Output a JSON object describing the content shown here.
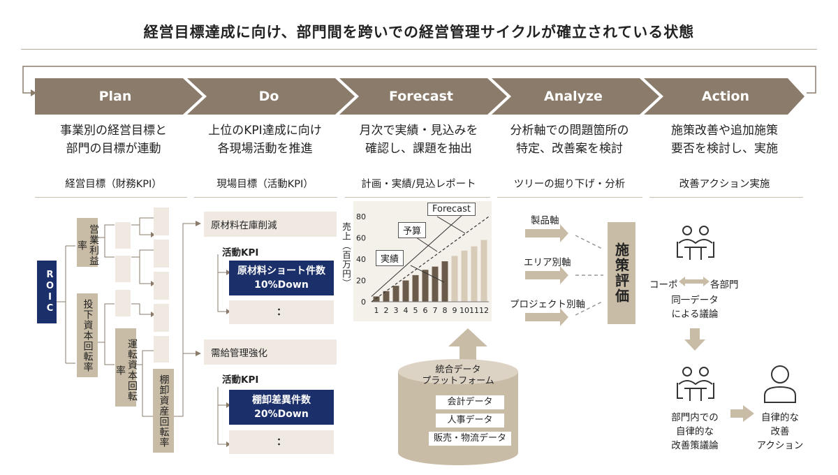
{
  "title": "経営目標達成に向け、部門間を跨いでの経営管理サイクルが確立されている状態",
  "stages": [
    {
      "label": "Plan",
      "desc1": "事業別の経営目標と",
      "desc2": "部門の目標が連動",
      "sub": "経営目標（財務KPI）"
    },
    {
      "label": "Do",
      "desc1": "上位のKPI達成に向け",
      "desc2": "各現場活動を推進",
      "sub": "現場目標（活動KPI）"
    },
    {
      "label": "Forecast",
      "desc1": "月次で実績・見込みを",
      "desc2": "確認し、課題を抽出",
      "sub": "計画・実績/見込レポート"
    },
    {
      "label": "Analyze",
      "desc1": "分析軸での問題箇所の",
      "desc2": "特定、改善案を検討",
      "sub": "ツリーの掘り下げ・分析"
    },
    {
      "label": "Action",
      "desc1": "施策改善や追加施策",
      "desc2": "要否を検討し、実施",
      "sub": "改善アクション実施"
    }
  ],
  "plan": {
    "root": "ROIC",
    "l1a": "営業利益率",
    "l1b": "投下資本回転率",
    "l2a": "運転資本回転率",
    "l3a": "棚卸資産回転率"
  },
  "do": {
    "g1_title": "原材料在庫削減",
    "g1_kpi": "活動KPI",
    "g1_box1": "原材料ショート件数",
    "g1_box2": "10%Down",
    "g1_more": "：",
    "g2_title": "需給管理強化",
    "g2_kpi": "活動KPI",
    "g2_box1": "棚卸差異件数",
    "g2_box2": "20%Down",
    "g2_more": "："
  },
  "forecast": {
    "ylabel": "売上（百万円）",
    "tag_forecast": "Forecast",
    "tag_budget": "予算",
    "tag_actual": "実績",
    "db_title1": "統合データ",
    "db_title2": "プラットフォーム",
    "db_items": [
      "会計データ",
      "人事データ",
      "販売・物流データ"
    ]
  },
  "chart_data": {
    "type": "bar",
    "categories": [
      "1",
      "2",
      "3",
      "4",
      "5",
      "6",
      "7",
      "8",
      "9",
      "10",
      "11",
      "12"
    ],
    "series": [
      {
        "name": "実績",
        "values": [
          5,
          10,
          15,
          20,
          25,
          30,
          33,
          38,
          43,
          48,
          52,
          58
        ]
      }
    ],
    "budget_line": {
      "name": "予算",
      "from": 0,
      "to": 80
    },
    "forecast_line": {
      "name": "Forecast",
      "from": 5,
      "to": 92
    },
    "yticks": [
      0,
      20,
      40,
      60,
      80
    ],
    "ylim": [
      0,
      80
    ],
    "ylabel": "売上（百万円）",
    "xlabel": "",
    "actual_months": 8,
    "colors": {
      "actual": "#6b5b4b",
      "forecast": "#d8cbb7"
    }
  },
  "analyze": {
    "axes": [
      "製品軸",
      "エリア別軸",
      "プロジェクト別軸"
    ],
    "eval": "施策評価"
  },
  "action": {
    "corp": "コーポ",
    "depts": "各部門",
    "same1": "同一データ",
    "same2": "による議論",
    "dept1": "部門内での",
    "dept2": "自律的な",
    "dept3": "改善策議論",
    "auto1": "自律的な",
    "auto2": "改善",
    "auto3": "アクション"
  },
  "colors": {
    "arrow": "#8a7b6b",
    "tan": "#c9bca6",
    "light": "#efe9e1",
    "navy": "#1b2f6b"
  }
}
